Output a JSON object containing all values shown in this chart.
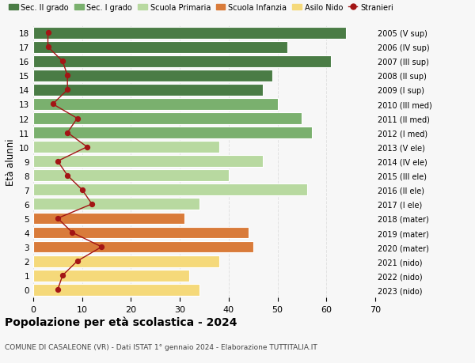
{
  "ages": [
    18,
    17,
    16,
    15,
    14,
    13,
    12,
    11,
    10,
    9,
    8,
    7,
    6,
    5,
    4,
    3,
    2,
    1,
    0
  ],
  "bar_values": [
    64,
    52,
    61,
    49,
    47,
    50,
    55,
    57,
    38,
    47,
    40,
    56,
    34,
    31,
    44,
    45,
    38,
    32,
    34
  ],
  "stranieri": [
    3,
    3,
    6,
    7,
    7,
    4,
    9,
    7,
    11,
    5,
    7,
    10,
    12,
    5,
    8,
    14,
    9,
    6,
    5
  ],
  "year_labels": [
    "2005 (V sup)",
    "2006 (IV sup)",
    "2007 (III sup)",
    "2008 (II sup)",
    "2009 (I sup)",
    "2010 (III med)",
    "2011 (II med)",
    "2012 (I med)",
    "2013 (V ele)",
    "2014 (IV ele)",
    "2015 (III ele)",
    "2016 (II ele)",
    "2017 (I ele)",
    "2018 (mater)",
    "2019 (mater)",
    "2020 (mater)",
    "2021 (nido)",
    "2022 (nido)",
    "2023 (nido)"
  ],
  "bar_colors": [
    "#4a7c45",
    "#4a7c45",
    "#4a7c45",
    "#4a7c45",
    "#4a7c45",
    "#7ab06e",
    "#7ab06e",
    "#7ab06e",
    "#b8d9a0",
    "#b8d9a0",
    "#b8d9a0",
    "#b8d9a0",
    "#b8d9a0",
    "#d97b3a",
    "#d97b3a",
    "#d97b3a",
    "#f5d97a",
    "#f5d97a",
    "#f5d97a"
  ],
  "legend_labels": [
    "Sec. II grado",
    "Sec. I grado",
    "Scuola Primaria",
    "Scuola Infanzia",
    "Asilo Nido",
    "Stranieri"
  ],
  "legend_colors": [
    "#4a7c45",
    "#7ab06e",
    "#b8d9a0",
    "#d97b3a",
    "#f5d97a",
    "#a31515"
  ],
  "ylabel_left": "Età alunni",
  "title": "Popolazione per età scolastica - 2024",
  "subtitle": "COMUNE DI CASALEONE (VR) - Dati ISTAT 1° gennaio 2024 - Elaborazione TUTTITALIA.IT",
  "xlim": [
    0,
    70
  ],
  "stranieri_color": "#a31515",
  "bg_color": "#f7f7f7"
}
